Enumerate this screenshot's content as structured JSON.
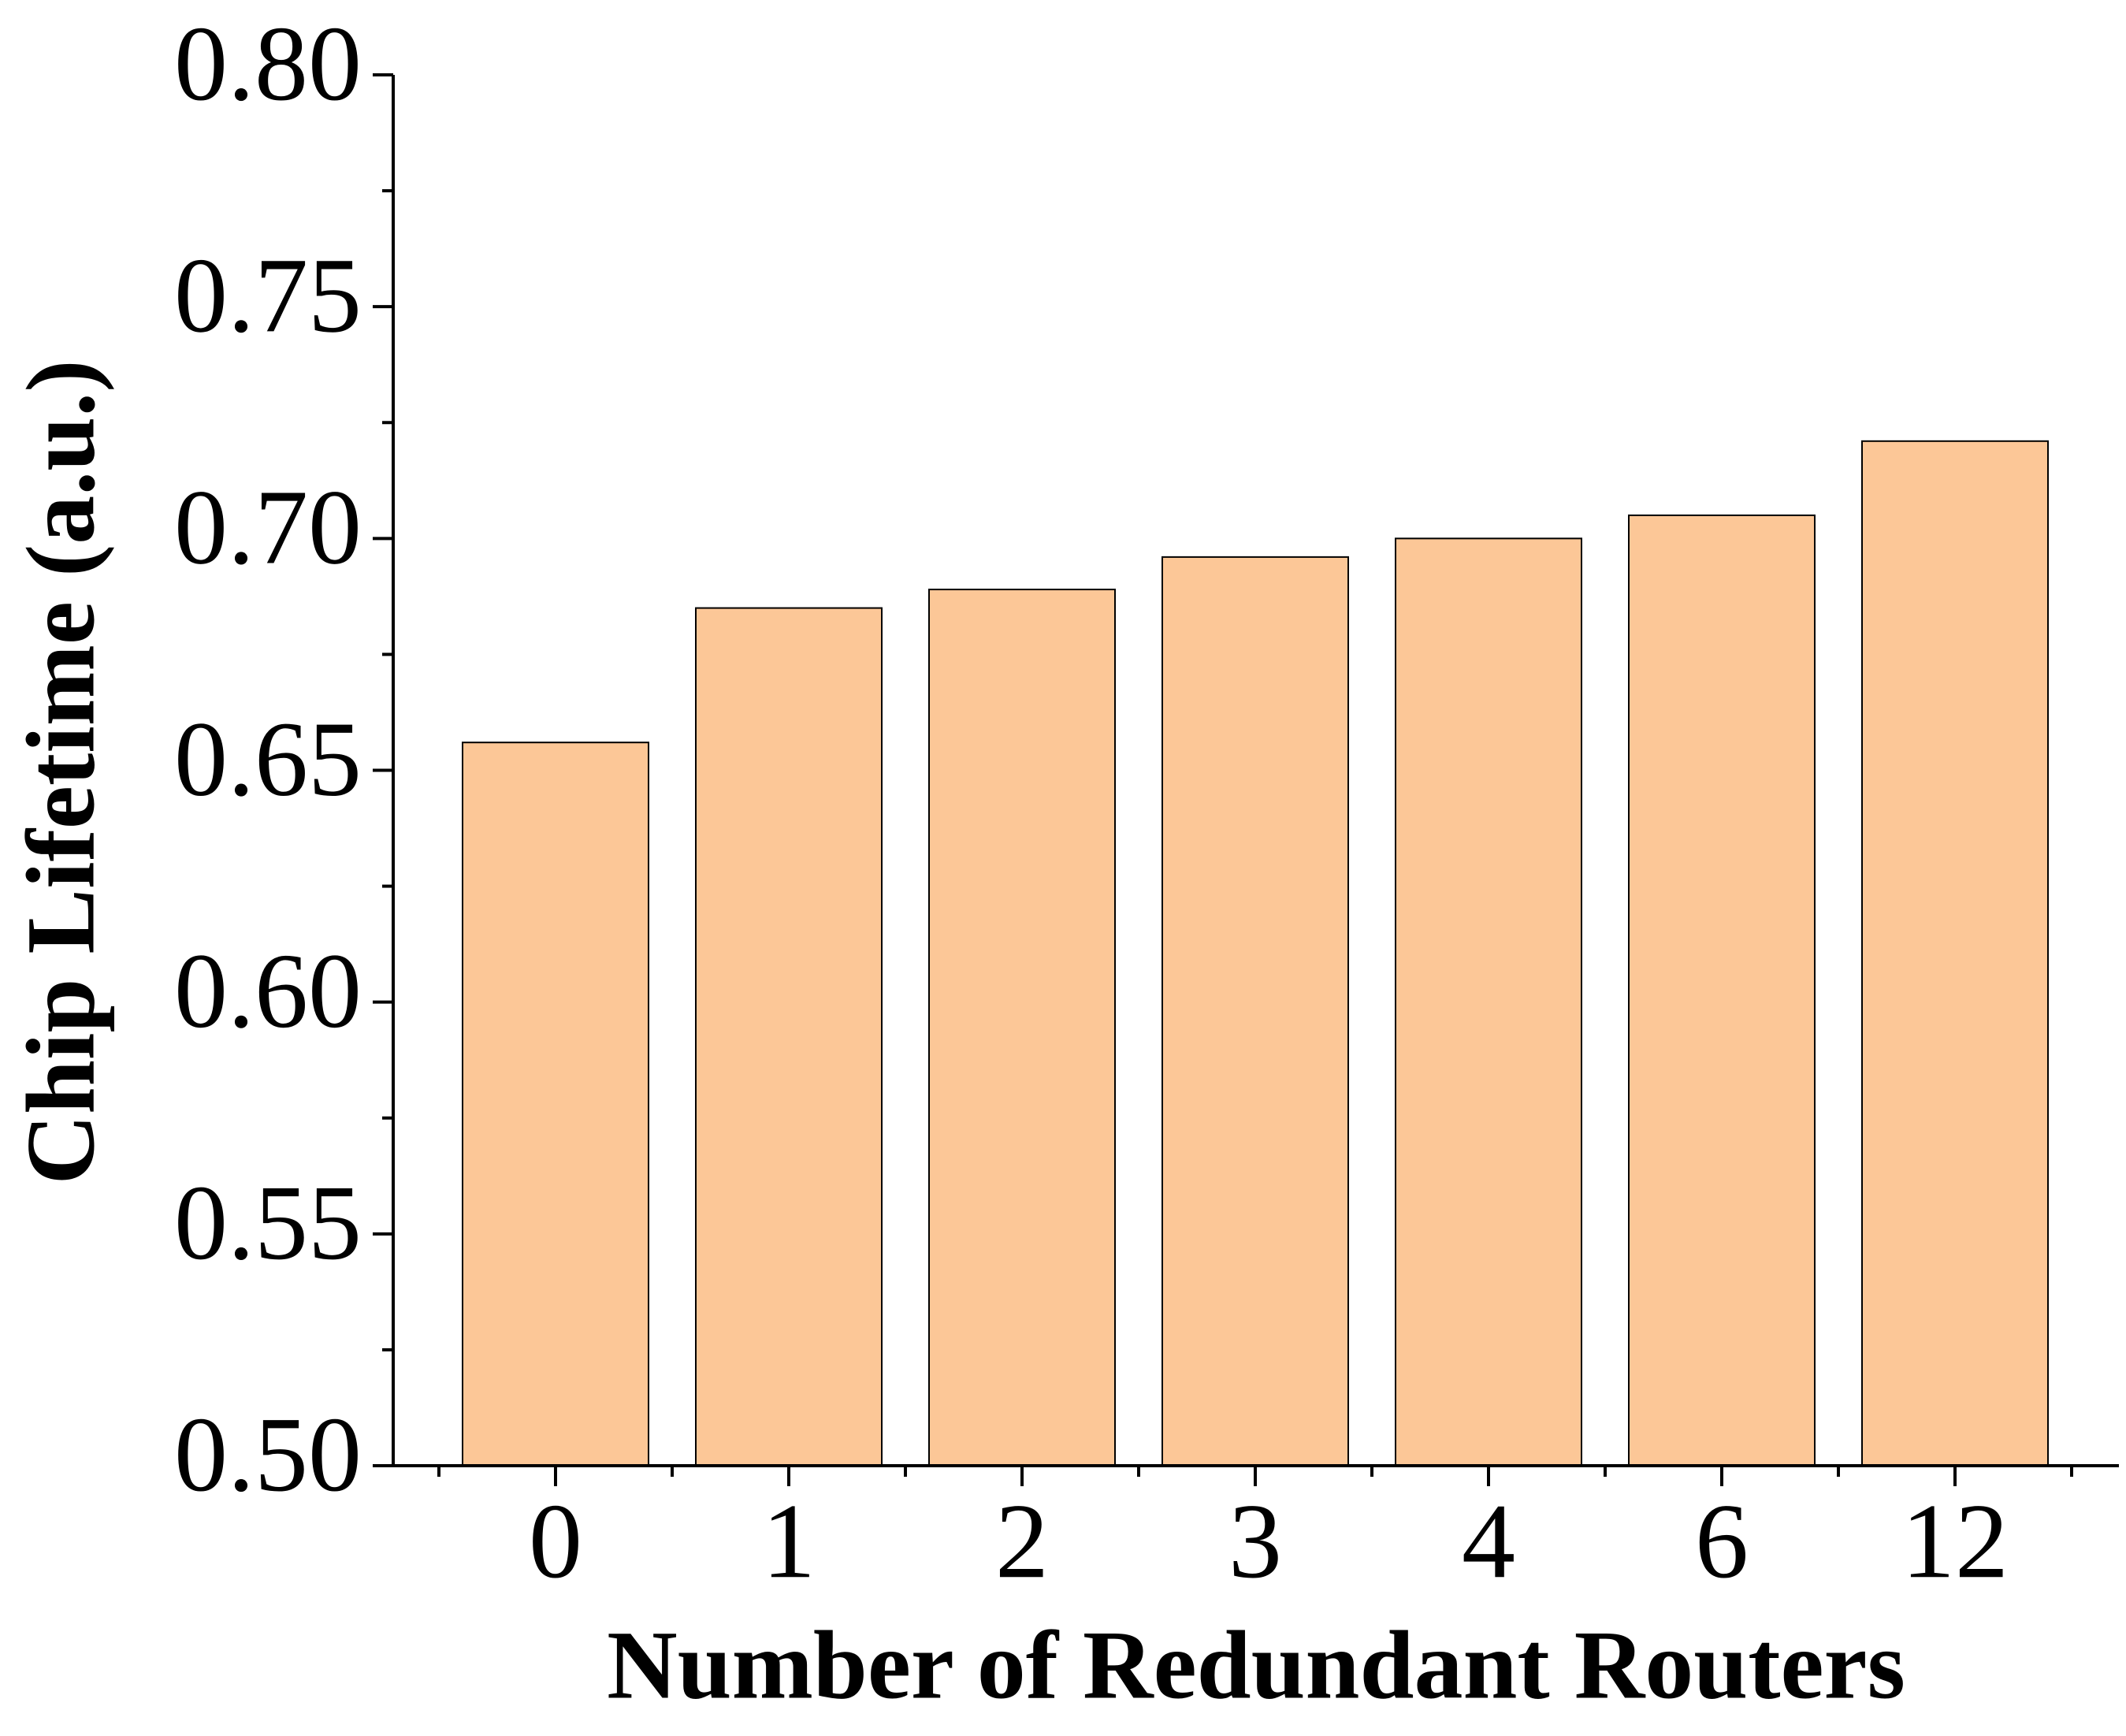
{
  "chart_data": {
    "type": "bar",
    "x_label": "Number of Redundant Routers",
    "y_label": "Chip Lifetime (a.u.)",
    "categories": [
      "0",
      "1",
      "2",
      "3",
      "4",
      "6",
      "12"
    ],
    "values": [
      0.656,
      0.685,
      0.689,
      0.696,
      0.7,
      0.705,
      0.721
    ],
    "color": "#fcc797",
    "ylim": [
      0.5,
      0.8
    ],
    "yticks": [
      {
        "value": 0.5,
        "label": "0.50"
      },
      {
        "value": 0.55,
        "label": "0.55"
      },
      {
        "value": 0.6,
        "label": "0.60"
      },
      {
        "value": 0.65,
        "label": "0.65"
      },
      {
        "value": 0.7,
        "label": "0.70"
      },
      {
        "value": 0.75,
        "label": "0.75"
      },
      {
        "value": 0.8,
        "label": "0.80"
      }
    ],
    "grid": false
  }
}
